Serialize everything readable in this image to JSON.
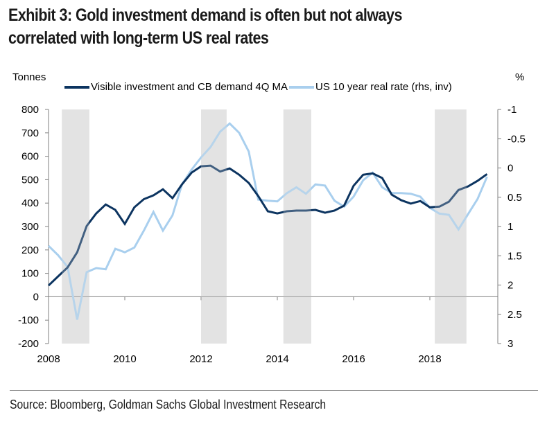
{
  "title": "Exhibit 3: Gold investment demand is often but not always correlated with long-term US real rates",
  "source": "Source: Bloomberg, Goldman Sachs Global Investment Research",
  "colors": {
    "dark_series": "#0c3460",
    "light_series": "#a9cfee",
    "shading": "#e3e3e3",
    "axis": "#7f7f7f"
  },
  "chart_data": {
    "type": "line",
    "title": "Exhibit 3: Gold investment demand is often but not always correlated with long-term US real rates",
    "ylabel_left": "Tonnes",
    "ylabel_right": "%",
    "xlabel": "",
    "x_ticks": [
      "2008",
      "2010",
      "2012",
      "2014",
      "2016",
      "2018"
    ],
    "x_range": [
      2008,
      2020
    ],
    "ylim_left": [
      -200,
      800
    ],
    "yticks_left": [
      "800",
      "700",
      "600",
      "500",
      "400",
      "300",
      "200",
      "100",
      "0",
      "-100",
      "-200"
    ],
    "ylim_right_inverted": [
      -1,
      3
    ],
    "yticks_right": [
      "-1",
      "-0.5",
      "0",
      "0.5",
      "1",
      "1.5",
      "2",
      "2.5",
      "3"
    ],
    "grid": false,
    "legend_position": "top",
    "shaded_periods": [
      [
        2008.35,
        2009.07
      ],
      [
        2012.0,
        2012.67
      ],
      [
        2014.16,
        2014.89
      ],
      [
        2018.13,
        2018.96
      ]
    ],
    "x": [
      2008.0,
      2008.25,
      2008.5,
      2008.75,
      2009.0,
      2009.25,
      2009.5,
      2009.75,
      2010.0,
      2010.25,
      2010.5,
      2010.75,
      2011.0,
      2011.25,
      2011.5,
      2011.75,
      2012.0,
      2012.25,
      2012.5,
      2012.75,
      2013.0,
      2013.25,
      2013.5,
      2013.75,
      2014.0,
      2014.25,
      2014.5,
      2014.75,
      2015.0,
      2015.25,
      2015.5,
      2015.75,
      2016.0,
      2016.25,
      2016.5,
      2016.75,
      2017.0,
      2017.25,
      2017.5,
      2017.75,
      2018.0,
      2018.25,
      2018.5,
      2018.75,
      2019.0,
      2019.25,
      2019.5
    ],
    "series": [
      {
        "name": "Visible investment and CB demand 4Q MA",
        "axis": "left",
        "values": [
          48,
          87,
          125,
          190,
          302,
          356,
          394,
          371,
          311,
          382,
          417,
          433,
          459,
          421,
          480,
          530,
          557,
          560,
          535,
          548,
          521,
          486,
          430,
          365,
          356,
          365,
          368,
          368,
          371,
          359,
          368,
          389,
          474,
          521,
          527,
          507,
          436,
          412,
          398,
          409,
          382,
          385,
          406,
          456,
          471,
          495,
          524
        ]
      },
      {
        "name": "US 10 year real rate (rhs, inv)",
        "axis": "right",
        "values": [
          1.33,
          1.49,
          1.69,
          2.59,
          1.78,
          1.71,
          1.73,
          1.38,
          1.44,
          1.36,
          1.07,
          0.75,
          1.07,
          0.81,
          0.28,
          0.03,
          -0.18,
          -0.36,
          -0.62,
          -0.76,
          -0.6,
          -0.28,
          0.54,
          0.56,
          0.57,
          0.43,
          0.33,
          0.44,
          0.28,
          0.3,
          0.56,
          0.66,
          0.49,
          0.21,
          0.08,
          0.33,
          0.43,
          0.43,
          0.44,
          0.49,
          0.68,
          0.78,
          0.8,
          1.05,
          0.79,
          0.53,
          0.15
        ]
      }
    ]
  }
}
